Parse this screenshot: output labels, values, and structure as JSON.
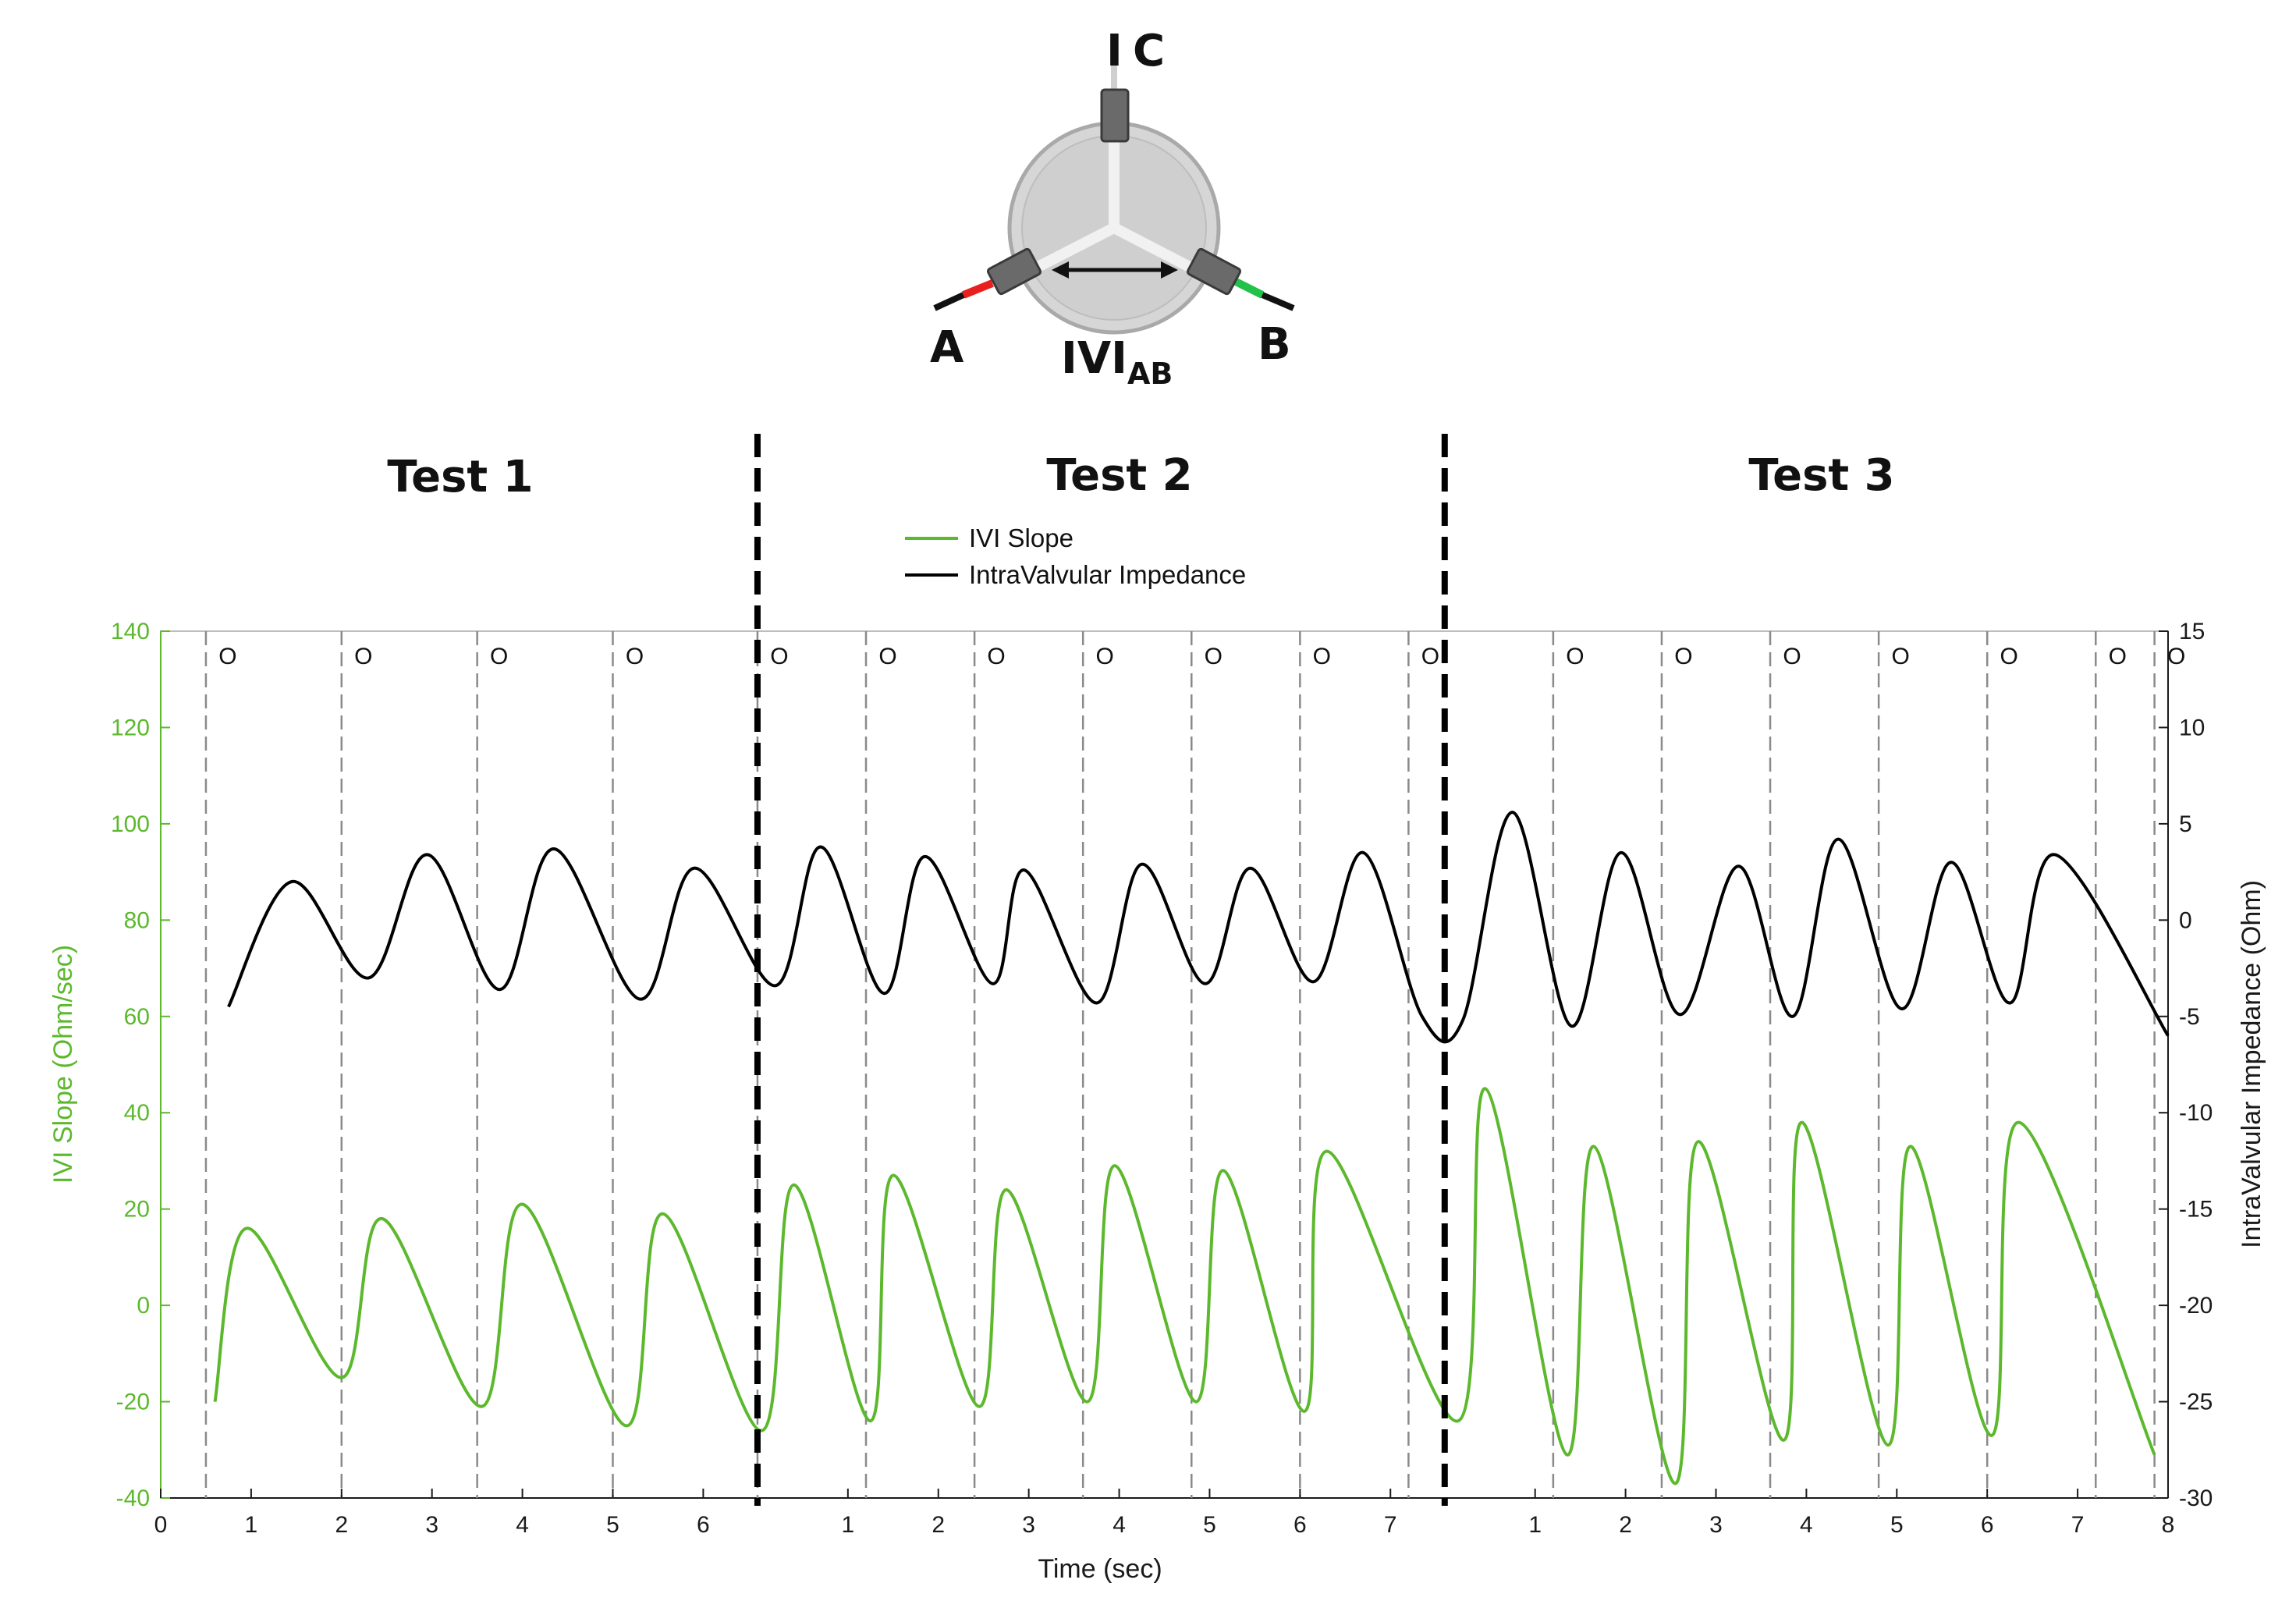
{
  "diagram": {
    "label_a": "A",
    "label_b": "B",
    "label_c": "C",
    "label_c_bar": "I",
    "label_ivi": "IVI",
    "label_ivi_sub": "AB",
    "colors": {
      "electrode_a": "#e8211f",
      "electrode_b": "#22c24a",
      "valve": "#d4d4d4"
    }
  },
  "tests": [
    "Test 1",
    "Test 2",
    "Test 3"
  ],
  "chart_data": {
    "type": "line",
    "xlabel": "Time (sec)",
    "ylabel_left": "IVI Slope (Ohm/sec)",
    "ylabel_right": "IntraValvular Impedance (Ohm)",
    "ylim_left": [
      -40,
      140
    ],
    "ylim_right": [
      -30,
      15
    ],
    "yticks_left": [
      "140",
      "120",
      "100",
      "80",
      "60",
      "40",
      "20",
      "0",
      "-20",
      "-40"
    ],
    "yticks_right": [
      "15",
      "10",
      "5",
      "0",
      "-5",
      "-10",
      "-15",
      "-20",
      "-25",
      "-30"
    ],
    "x_ticks": [
      "0",
      "1",
      "2",
      "3",
      "4",
      "5",
      "6",
      "1",
      "2",
      "3",
      "4",
      "5",
      "6",
      "7",
      "1",
      "2",
      "3",
      "4",
      "5",
      "6",
      "7",
      "8"
    ],
    "grid": false,
    "legend_position": "top-center",
    "series": [
      {
        "name": "IVI Slope",
        "axis": "left",
        "color": "#5cb82d"
      },
      {
        "name": "IntraValvular Impedance",
        "axis": "right",
        "color": "#000000"
      }
    ],
    "test_boundaries": [
      {
        "test": "Test 1",
        "duration_sec": 6.6
      },
      {
        "test": "Test 2",
        "duration_sec": 7.6
      },
      {
        "test": "Test 3",
        "duration_sec": 8.0
      }
    ],
    "valve_open_marker": "O",
    "valve_open_times": [
      {
        "test": "Test 1",
        "times": [
          0.5,
          2.0,
          3.5,
          5.0
        ]
      },
      {
        "test": "Test 2",
        "times": [
          0.0,
          1.2,
          2.4,
          3.6,
          4.8,
          6.0,
          7.2
        ]
      },
      {
        "test": "Test 3",
        "times": [
          1.2,
          2.4,
          3.6,
          4.8,
          6.0,
          7.2,
          7.85
        ]
      }
    ],
    "impedance_cycles": [
      {
        "test": "Test 1",
        "peaks": [
          [
            1.45,
            2.0
          ],
          [
            2.95,
            3.4
          ],
          [
            4.35,
            3.7
          ],
          [
            5.9,
            2.7
          ]
        ],
        "troughs": [
          [
            0.75,
            -4.5
          ],
          [
            2.3,
            -3.0
          ],
          [
            3.75,
            -3.6
          ],
          [
            5.3,
            -4.1
          ]
        ]
      },
      {
        "test": "Test 2",
        "peaks": [
          [
            0.7,
            3.8
          ],
          [
            1.85,
            3.3
          ],
          [
            2.95,
            2.6
          ],
          [
            4.25,
            2.9
          ],
          [
            5.45,
            2.7
          ],
          [
            6.7,
            3.5
          ]
        ],
        "troughs": [
          [
            0.2,
            -3.4
          ],
          [
            1.4,
            -3.8
          ],
          [
            2.6,
            -3.3
          ],
          [
            3.75,
            -4.3
          ],
          [
            4.95,
            -3.3
          ],
          [
            6.15,
            -3.2
          ],
          [
            7.35,
            -5.0
          ]
        ]
      },
      {
        "test": "Test 3",
        "peaks": [
          [
            0.75,
            5.6
          ],
          [
            1.95,
            3.5
          ],
          [
            3.25,
            2.8
          ],
          [
            4.35,
            4.2
          ],
          [
            5.6,
            3.0
          ],
          [
            6.75,
            3.4
          ]
        ],
        "troughs": [
          [
            0.2,
            -5.2
          ],
          [
            1.4,
            -5.5
          ],
          [
            2.6,
            -4.9
          ],
          [
            3.85,
            -5.0
          ],
          [
            5.05,
            -4.6
          ],
          [
            6.25,
            -4.3
          ],
          [
            8.0,
            -6.0
          ]
        ]
      }
    ],
    "slope_cycles": [
      {
        "test": "Test 1",
        "peaks": [
          [
            0.95,
            16
          ],
          [
            2.45,
            18
          ],
          [
            4.0,
            21
          ],
          [
            5.55,
            19
          ]
        ],
        "troughs": [
          [
            0.6,
            -20
          ],
          [
            2.0,
            -15
          ],
          [
            3.55,
            -21
          ],
          [
            5.15,
            -25
          ]
        ]
      },
      {
        "test": "Test 2",
        "peaks": [
          [
            0.4,
            25
          ],
          [
            1.5,
            27
          ],
          [
            2.75,
            24
          ],
          [
            3.95,
            29
          ],
          [
            5.15,
            28
          ],
          [
            6.3,
            32
          ]
        ],
        "troughs": [
          [
            0.05,
            -26
          ],
          [
            1.25,
            -24
          ],
          [
            2.45,
            -21
          ],
          [
            3.65,
            -20
          ],
          [
            4.85,
            -20
          ],
          [
            6.05,
            -22
          ]
        ]
      },
      {
        "test": "Test 3",
        "peaks": [
          [
            0.45,
            45
          ],
          [
            1.65,
            33
          ],
          [
            2.8,
            34
          ],
          [
            3.95,
            38
          ],
          [
            5.15,
            33
          ],
          [
            6.35,
            38
          ]
        ],
        "troughs": [
          [
            0.15,
            -24
          ],
          [
            1.35,
            -31
          ],
          [
            2.55,
            -37
          ],
          [
            3.75,
            -28
          ],
          [
            4.9,
            -29
          ],
          [
            6.05,
            -27
          ],
          [
            7.85,
            -31
          ]
        ]
      }
    ]
  }
}
